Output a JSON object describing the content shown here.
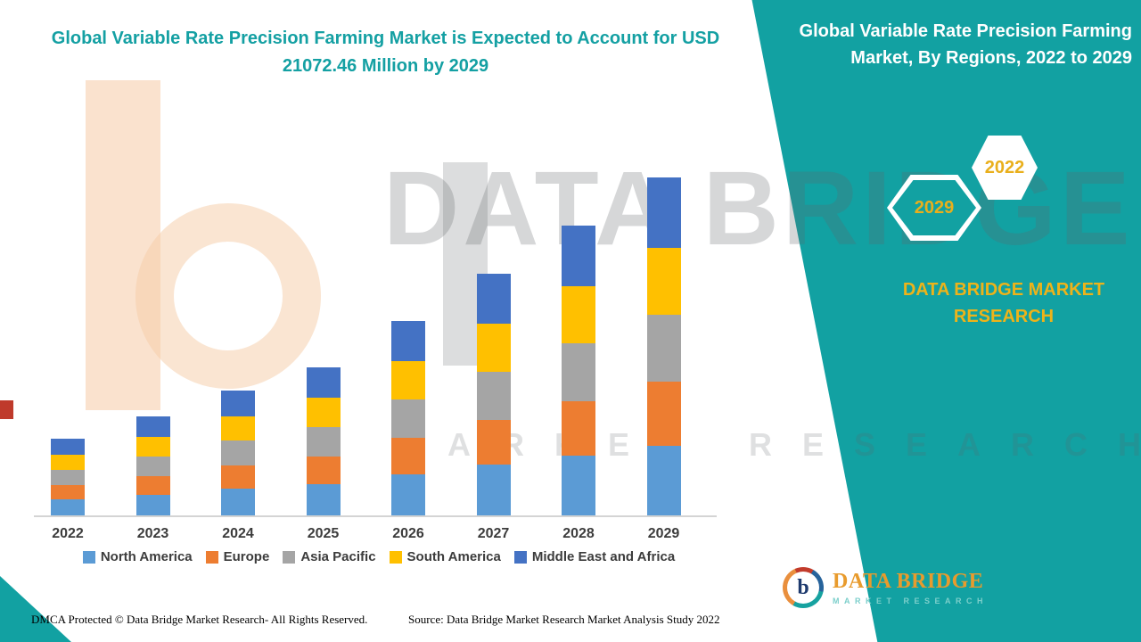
{
  "header": {
    "left_title": "Global Variable Rate Precision Farming Market is Expected to Account for USD 21072.46 Million by 2029",
    "right_title": "Global Variable Rate Precision Farming Market, By Regions, 2022 to 2029"
  },
  "badges": {
    "back_year": "2022",
    "front_year": "2029"
  },
  "brand": {
    "panel_text": "DATA BRIDGE MARKET RESEARCH",
    "logo_title": "DATA BRIDGE",
    "logo_subtitle": "MARKET RESEARCH",
    "logo_letter": "b"
  },
  "watermark": {
    "title": "DATA BRIDGE",
    "subtitle": "MARKET RESEARCH"
  },
  "footer": {
    "dmca": "DMCA Protected © Data Bridge Market Research- All Rights Reserved.",
    "source": "Source: Data Bridge Market Research Market Analysis Study 2022"
  },
  "colors": {
    "teal_panel": "#12A1A2",
    "title_teal": "#14A0A3",
    "gold_accent": "#EDB31A",
    "north_america": "#5B9BD5",
    "europe": "#ED7D31",
    "asia_pacific": "#A5A5A5",
    "south_america": "#FFC000",
    "middle_east_africa": "#4472C4"
  },
  "chart_data": {
    "type": "bar",
    "stacked": true,
    "title": "Global Variable Rate Precision Farming Market is Expected to Account for USD 21072.46 Million by 2029",
    "annotation": "USD 21072.46 Million by 2029",
    "value_unit": "USD Million",
    "categories": [
      "2022",
      "2023",
      "2024",
      "2025",
      "2026",
      "2027",
      "2028",
      "2029"
    ],
    "series": [
      {
        "name": "North America",
        "color": "#5B9BD5",
        "values": [
          1000,
          1300,
          1650,
          1950,
          2550,
          3150,
          3750,
          4350
        ]
      },
      {
        "name": "Europe",
        "color": "#ED7D31",
        "values": [
          900,
          1150,
          1450,
          1720,
          2260,
          2810,
          3380,
          3960
        ]
      },
      {
        "name": "Asia Pacific",
        "color": "#A5A5A5",
        "values": [
          950,
          1230,
          1550,
          1840,
          2420,
          3010,
          3610,
          4210
        ]
      },
      {
        "name": "South America",
        "color": "#FFC000",
        "values": [
          930,
          1200,
          1520,
          1800,
          2370,
          2950,
          3540,
          4150
        ]
      },
      {
        "name": "Middle East and Africa",
        "color": "#4472C4",
        "values": [
          1000,
          1290,
          1615,
          1920,
          2520,
          3150,
          3790,
          4402.46
        ]
      }
    ],
    "totals": [
      4780,
      6170,
      7785,
      9230,
      12120,
      15070,
      18070,
      21072.46
    ],
    "ylim": [
      0,
      22000
    ],
    "gridlines": false,
    "y_axis_visible": false,
    "legend_position": "bottom"
  }
}
